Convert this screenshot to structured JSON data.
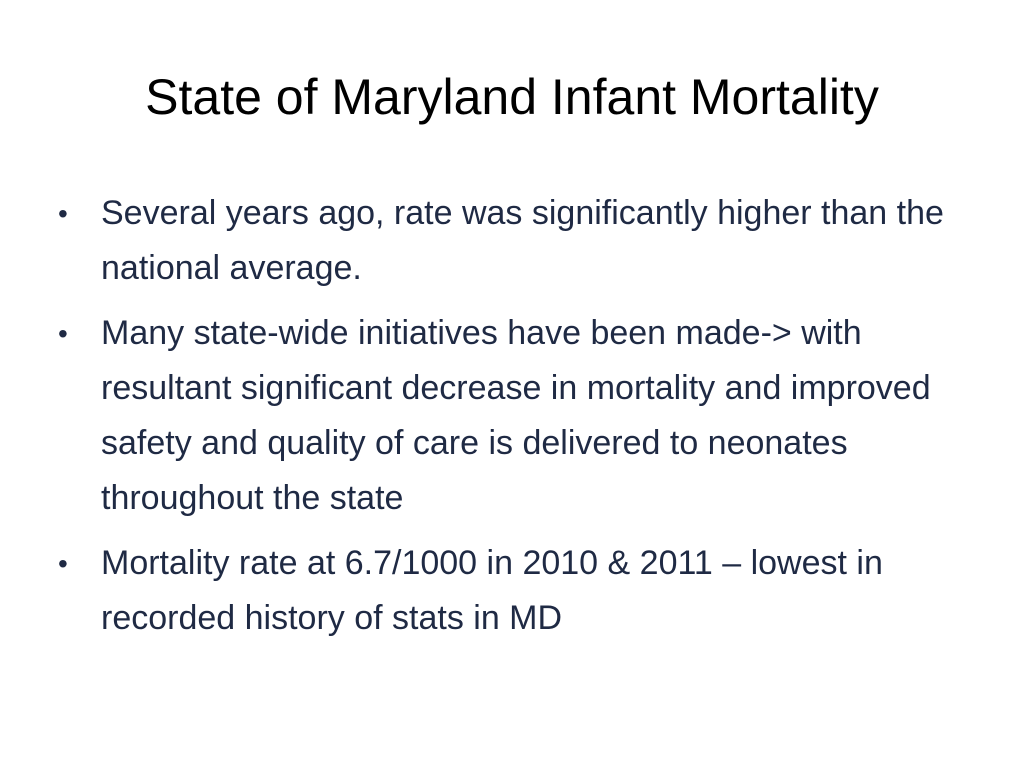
{
  "slide": {
    "title": "State of Maryland Infant Mortality",
    "bullet_symbol": "•",
    "bullets": [
      {
        "text": "Several years ago, rate was significantly higher than the national average."
      },
      {
        "text": "Many state-wide initiatives have been made-> with resultant significant decrease in mortality and improved safety and quality of care is delivered to neonates throughout the state"
      },
      {
        "text": "Mortality rate at 6.7/1000 in 2010 & 2011 – lowest in recorded history of stats in MD"
      }
    ]
  },
  "colors": {
    "background": "#ffffff",
    "title": "#000000",
    "body_text": "#1f2a44"
  }
}
